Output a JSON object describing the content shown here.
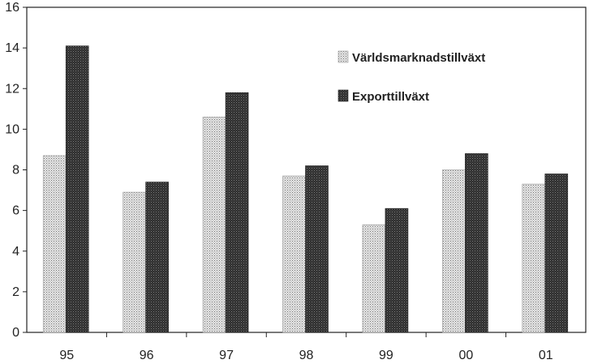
{
  "chart_data": {
    "type": "bar",
    "title": "",
    "xlabel": "",
    "ylabel": "",
    "categories": [
      "95",
      "96",
      "97",
      "98",
      "99",
      "00",
      "01"
    ],
    "series": [
      {
        "name": "Världsmarknadstillväxt",
        "values": [
          8.7,
          6.9,
          10.6,
          7.7,
          5.3,
          8.0,
          7.3
        ],
        "pattern": "light-dotted",
        "color": "#b8b8b8"
      },
      {
        "name": "Exporttillväxt",
        "values": [
          14.1,
          7.4,
          11.8,
          8.2,
          6.1,
          8.8,
          7.8
        ],
        "pattern": "dark-dotted",
        "color": "#3a3a3a"
      }
    ],
    "ylim": [
      0,
      16
    ],
    "yticks": [
      "0",
      "2",
      "4",
      "6",
      "8",
      "10",
      "12",
      "14",
      "16"
    ],
    "grid": false,
    "legend_position": "top-right"
  }
}
